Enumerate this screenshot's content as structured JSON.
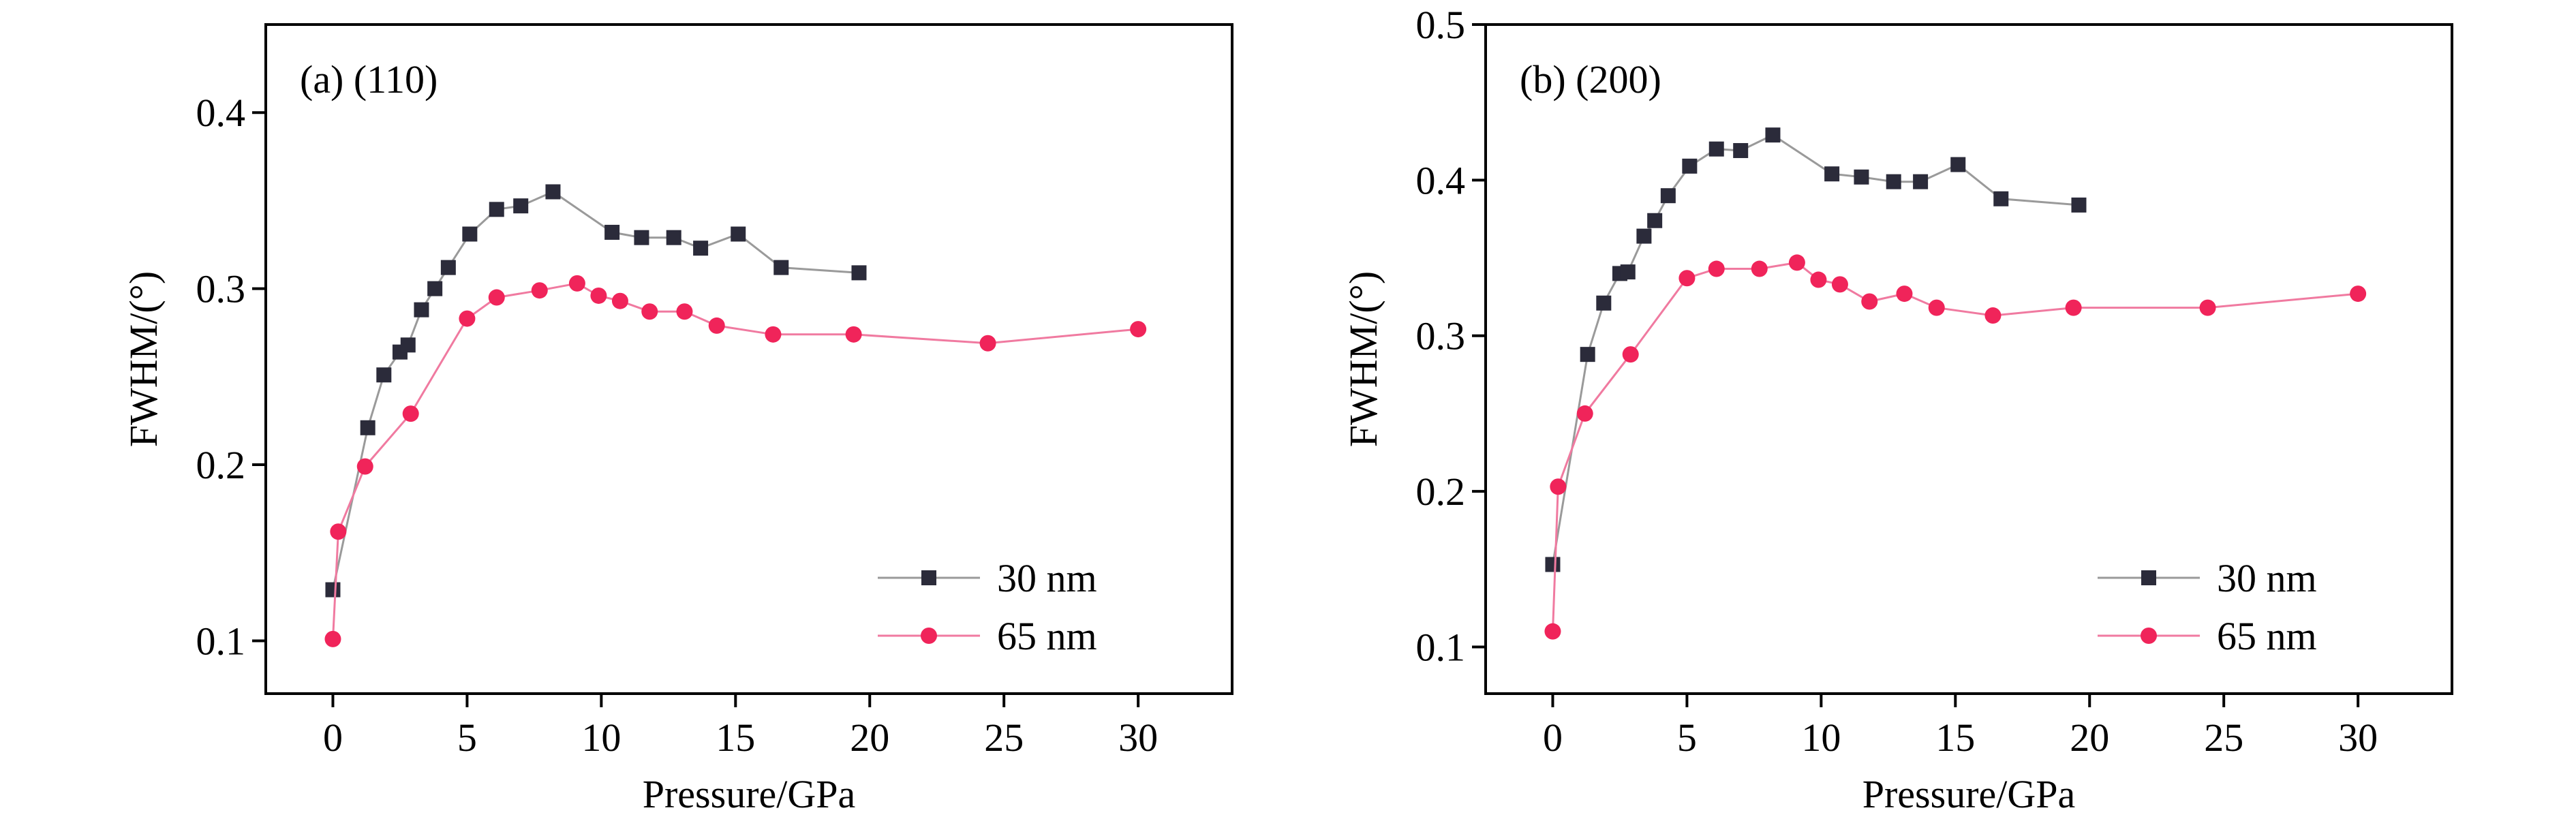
{
  "chart_data": [
    {
      "type": "line",
      "panel_label": "(a) (110)",
      "xlabel": "Pressure/GPa",
      "ylabel": "FWHM/(°)",
      "xlim": [
        -2.5,
        33.5
      ],
      "ylim": [
        0.07,
        0.45
      ],
      "xticks": [
        0,
        5,
        10,
        15,
        20,
        25,
        30
      ],
      "yticks": [
        0.1,
        0.2,
        0.3,
        0.4
      ],
      "ytick_labels": [
        "0.1",
        "0.2",
        "0.3",
        "0.4"
      ],
      "legend_position": "bottom-right",
      "series": [
        {
          "name": "30 nm",
          "color": "#2b2b3a",
          "line_color": "#9a9a9a",
          "marker": "square",
          "points": [
            [
              0.0,
              0.129
            ],
            [
              1.3,
              0.221
            ],
            [
              1.9,
              0.251
            ],
            [
              2.5,
              0.264
            ],
            [
              2.8,
              0.268
            ],
            [
              3.3,
              0.288
            ],
            [
              3.8,
              0.3
            ],
            [
              4.3,
              0.312
            ],
            [
              5.1,
              0.331
            ],
            [
              6.1,
              0.345
            ],
            [
              7.0,
              0.347
            ],
            [
              8.2,
              0.355
            ],
            [
              10.4,
              0.332
            ],
            [
              11.5,
              0.329
            ],
            [
              12.7,
              0.329
            ],
            [
              13.7,
              0.323
            ],
            [
              15.1,
              0.331
            ],
            [
              16.7,
              0.312
            ],
            [
              19.6,
              0.309
            ]
          ]
        },
        {
          "name": "65 nm",
          "color": "#f0245a",
          "line_color": "#f07aa0",
          "marker": "circle",
          "points": [
            [
              0.0,
              0.101
            ],
            [
              0.2,
              0.162
            ],
            [
              1.2,
              0.199
            ],
            [
              2.9,
              0.229
            ],
            [
              5.0,
              0.283
            ],
            [
              6.1,
              0.295
            ],
            [
              7.7,
              0.299
            ],
            [
              9.1,
              0.303
            ],
            [
              9.9,
              0.296
            ],
            [
              10.7,
              0.293
            ],
            [
              11.8,
              0.287
            ],
            [
              13.1,
              0.287
            ],
            [
              14.3,
              0.279
            ],
            [
              16.4,
              0.274
            ],
            [
              19.4,
              0.274
            ],
            [
              24.4,
              0.269
            ],
            [
              30.0,
              0.277
            ]
          ]
        }
      ]
    },
    {
      "type": "line",
      "panel_label": "(b) (200)",
      "xlabel": "Pressure/GPa",
      "ylabel": "FWHM/(°)",
      "xlim": [
        -2.5,
        33.5
      ],
      "ylim": [
        0.07,
        0.5
      ],
      "xticks": [
        0,
        5,
        10,
        15,
        20,
        25,
        30
      ],
      "yticks": [
        0.1,
        0.2,
        0.3,
        0.4,
        0.5
      ],
      "ytick_labels": [
        "0.1",
        "0.2",
        "0.3",
        "0.4",
        "0.5"
      ],
      "legend_position": "bottom-right",
      "series": [
        {
          "name": "30 nm",
          "color": "#2b2b3a",
          "line_color": "#9a9a9a",
          "marker": "square",
          "points": [
            [
              0.0,
              0.153
            ],
            [
              1.3,
              0.288
            ],
            [
              1.9,
              0.321
            ],
            [
              2.5,
              0.34
            ],
            [
              2.8,
              0.341
            ],
            [
              3.4,
              0.364
            ],
            [
              3.8,
              0.374
            ],
            [
              4.3,
              0.39
            ],
            [
              5.1,
              0.409
            ],
            [
              6.1,
              0.42
            ],
            [
              7.0,
              0.419
            ],
            [
              8.2,
              0.429
            ],
            [
              10.4,
              0.404
            ],
            [
              11.5,
              0.402
            ],
            [
              12.7,
              0.399
            ],
            [
              13.7,
              0.399
            ],
            [
              15.1,
              0.41
            ],
            [
              16.7,
              0.388
            ],
            [
              19.6,
              0.384
            ]
          ]
        },
        {
          "name": "65 nm",
          "color": "#f0245a",
          "line_color": "#f07aa0",
          "marker": "circle",
          "points": [
            [
              0.0,
              0.11
            ],
            [
              0.2,
              0.203
            ],
            [
              1.2,
              0.25
            ],
            [
              2.9,
              0.288
            ],
            [
              5.0,
              0.337
            ],
            [
              6.1,
              0.343
            ],
            [
              7.7,
              0.343
            ],
            [
              9.1,
              0.347
            ],
            [
              9.9,
              0.336
            ],
            [
              10.7,
              0.333
            ],
            [
              11.8,
              0.322
            ],
            [
              13.1,
              0.327
            ],
            [
              14.3,
              0.318
            ],
            [
              16.4,
              0.313
            ],
            [
              19.4,
              0.318
            ],
            [
              24.4,
              0.318
            ],
            [
              30.0,
              0.327
            ]
          ]
        }
      ]
    }
  ]
}
